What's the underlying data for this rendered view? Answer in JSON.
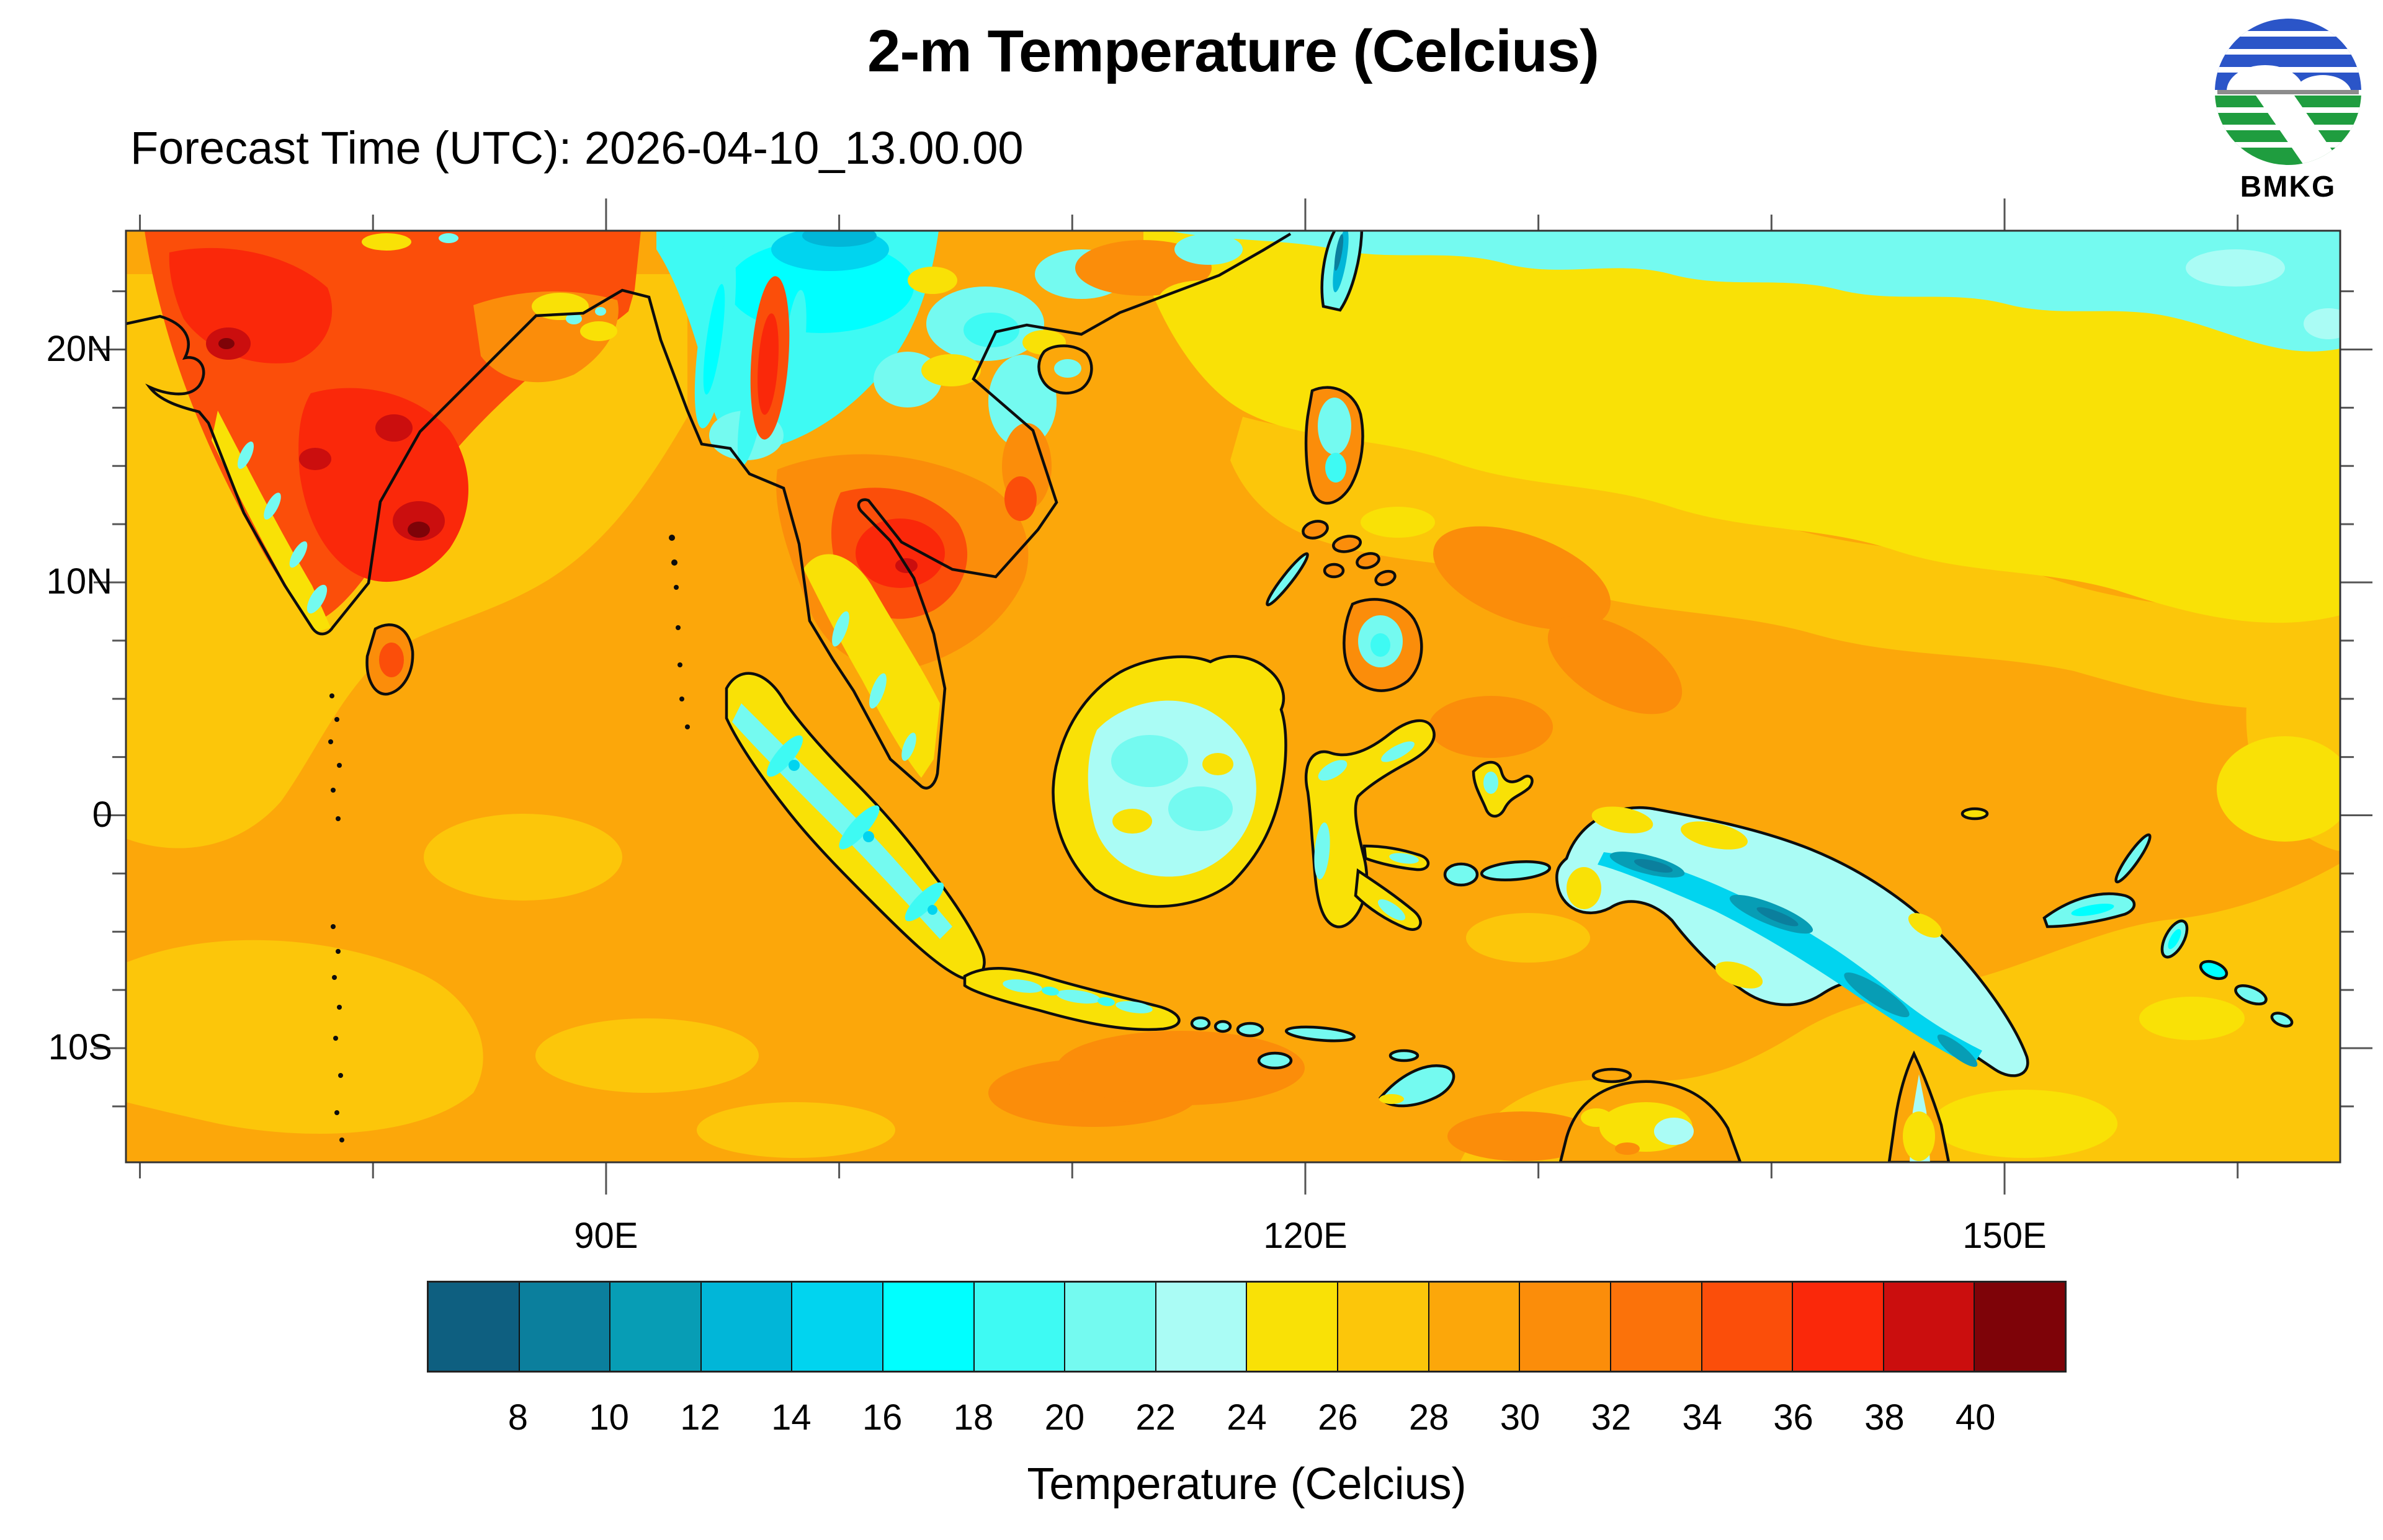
{
  "header": {
    "title": "2-m Temperature (Celcius)",
    "subtitle": "Forecast Time (UTC): 2026-04-10_13.00.00"
  },
  "logo": {
    "label": "BMKG",
    "blue": "#2B55C8",
    "green": "#1F9D3F",
    "gray": "#8C8C8C"
  },
  "axes": {
    "lat_ticks": [
      {
        "label": "20N",
        "deg": 20
      },
      {
        "label": "10N",
        "deg": 10
      },
      {
        "label": "0",
        "deg": 0
      },
      {
        "label": "10S",
        "deg": -10
      }
    ],
    "lon_ticks": [
      {
        "label": "90E",
        "deg": 90
      },
      {
        "label": "120E",
        "deg": 120
      },
      {
        "label": "150E",
        "deg": 150
      }
    ]
  },
  "colorbar": {
    "title": "Temperature (Celcius)",
    "tick_labels": [
      "8",
      "10",
      "12",
      "14",
      "16",
      "18",
      "20",
      "22",
      "24",
      "26",
      "28",
      "30",
      "32",
      "34",
      "36",
      "38",
      "40"
    ],
    "cell_colors": [
      "#0E5F80",
      "#0B7F9D",
      "#079DB5",
      "#01B6D8",
      "#01D4EF",
      "#00FFFF",
      "#3EFAF3",
      "#74FAF0",
      "#AAFCF5",
      "#F9E106",
      "#FCC60A",
      "#FCA70A",
      "#FB8D0A",
      "#FB720A",
      "#FB4E0A",
      "#FA280A",
      "#CB0E0E",
      "#7E0308"
    ]
  },
  "palette": {
    "b08": "#0E5F80",
    "b10": "#0B7F9D",
    "b12": "#079DB5",
    "b14": "#01B6D8",
    "b16": "#01D4EF",
    "b18": "#00FFFF",
    "b20": "#3EFAF3",
    "b22": "#74FAF0",
    "b24": "#AAFCF5",
    "b26": "#F9E106",
    "b28": "#FCC60A",
    "b30": "#FCA70A",
    "b32": "#FB8D0A",
    "b34": "#FB720A",
    "b36": "#FB4E0A",
    "b38": "#FA280A",
    "b40": "#CB0E0E",
    "b42": "#7E0308"
  }
}
